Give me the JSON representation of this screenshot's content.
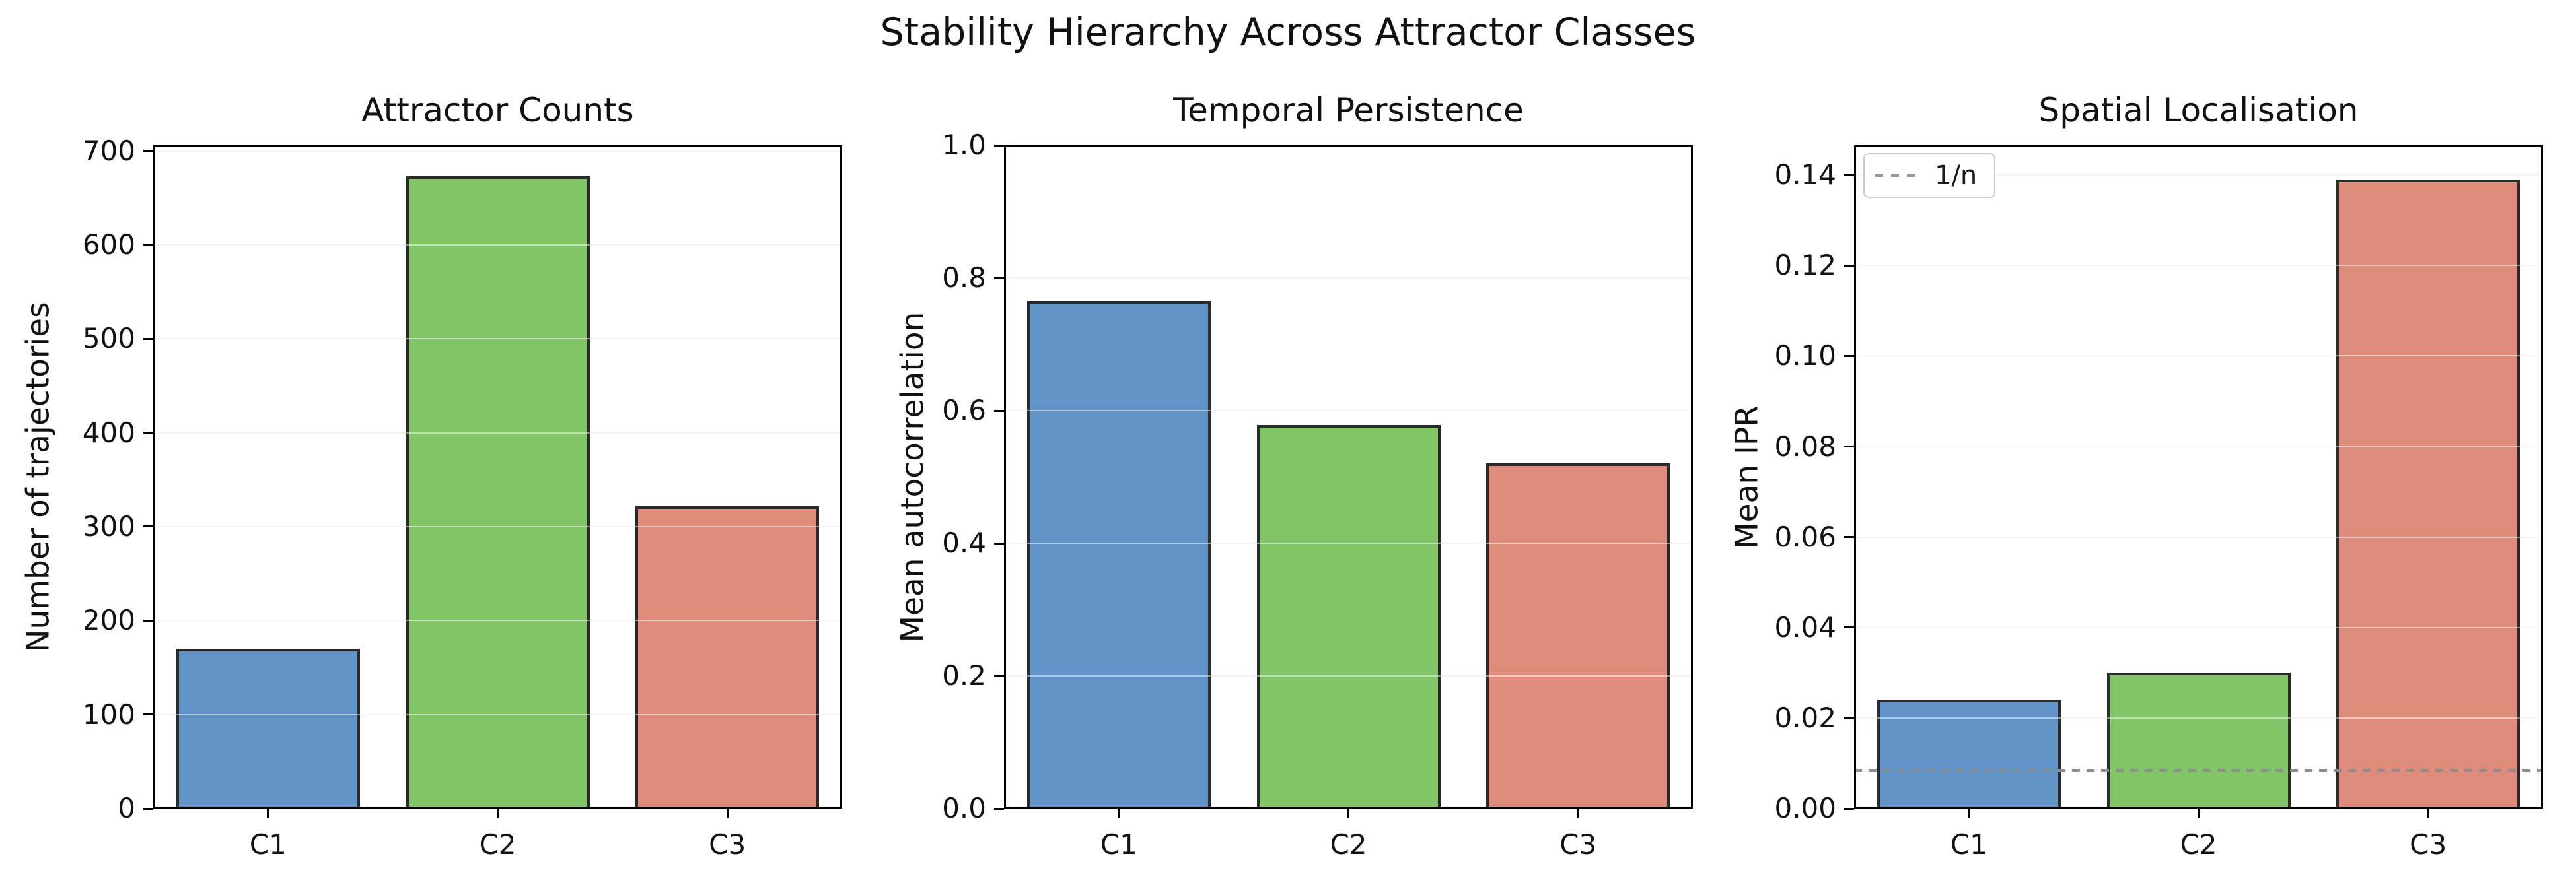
{
  "figure": {
    "suptitle": "Stability Hierarchy Across Attractor Classes",
    "background": "#ffffff"
  },
  "palette": {
    "blue": "#6193C6",
    "green": "#82C468",
    "salmon": "#E08C7C",
    "bar_edge": "#2a2a2a",
    "spine": "#000000",
    "grid": "#e7e7e7",
    "reference_line": "#8c8c8c"
  },
  "chart_data": [
    {
      "type": "bar",
      "title": "Attractor Counts",
      "ylabel": "Number of trajectories",
      "xlabel": "",
      "categories": [
        "C1",
        "C2",
        "C3"
      ],
      "values": [
        170,
        673,
        322
      ],
      "bar_colors": [
        "#6193C6",
        "#82C468",
        "#E08C7C"
      ],
      "ylim": [
        0,
        706
      ],
      "yticks": [
        "0",
        "100",
        "200",
        "300",
        "400",
        "500",
        "600",
        "700"
      ],
      "grid": true,
      "legend": null,
      "hline": null
    },
    {
      "type": "bar",
      "title": "Temporal Persistence",
      "ylabel": "Mean autocorrelation",
      "xlabel": "",
      "categories": [
        "C1",
        "C2",
        "C3"
      ],
      "values": [
        0.765,
        0.578,
        0.52
      ],
      "bar_colors": [
        "#6193C6",
        "#82C468",
        "#E08C7C"
      ],
      "ylim": [
        0,
        1.0
      ],
      "yticks": [
        "0.0",
        "0.2",
        "0.4",
        "0.6",
        "0.8",
        "1.0"
      ],
      "grid": true,
      "legend": null,
      "hline": null
    },
    {
      "type": "bar",
      "title": "Spatial Localisation",
      "ylabel": "Mean IPR",
      "xlabel": "",
      "categories": [
        "C1",
        "C2",
        "C3"
      ],
      "values": [
        0.024,
        0.03,
        0.139
      ],
      "bar_colors": [
        "#6193C6",
        "#82C468",
        "#E08C7C"
      ],
      "ylim": [
        0,
        0.1466
      ],
      "yticks": [
        "0.00",
        "0.02",
        "0.04",
        "0.06",
        "0.08",
        "0.10",
        "0.12",
        "0.14"
      ],
      "grid": true,
      "legend": {
        "position": "upper left",
        "entries": [
          {
            "label": "1/n",
            "line": "dotted",
            "color": "#999999"
          }
        ]
      },
      "hline": {
        "value": 0.0084,
        "label": "1/n",
        "style": "dotted",
        "color": "#8c8c8c"
      }
    }
  ]
}
